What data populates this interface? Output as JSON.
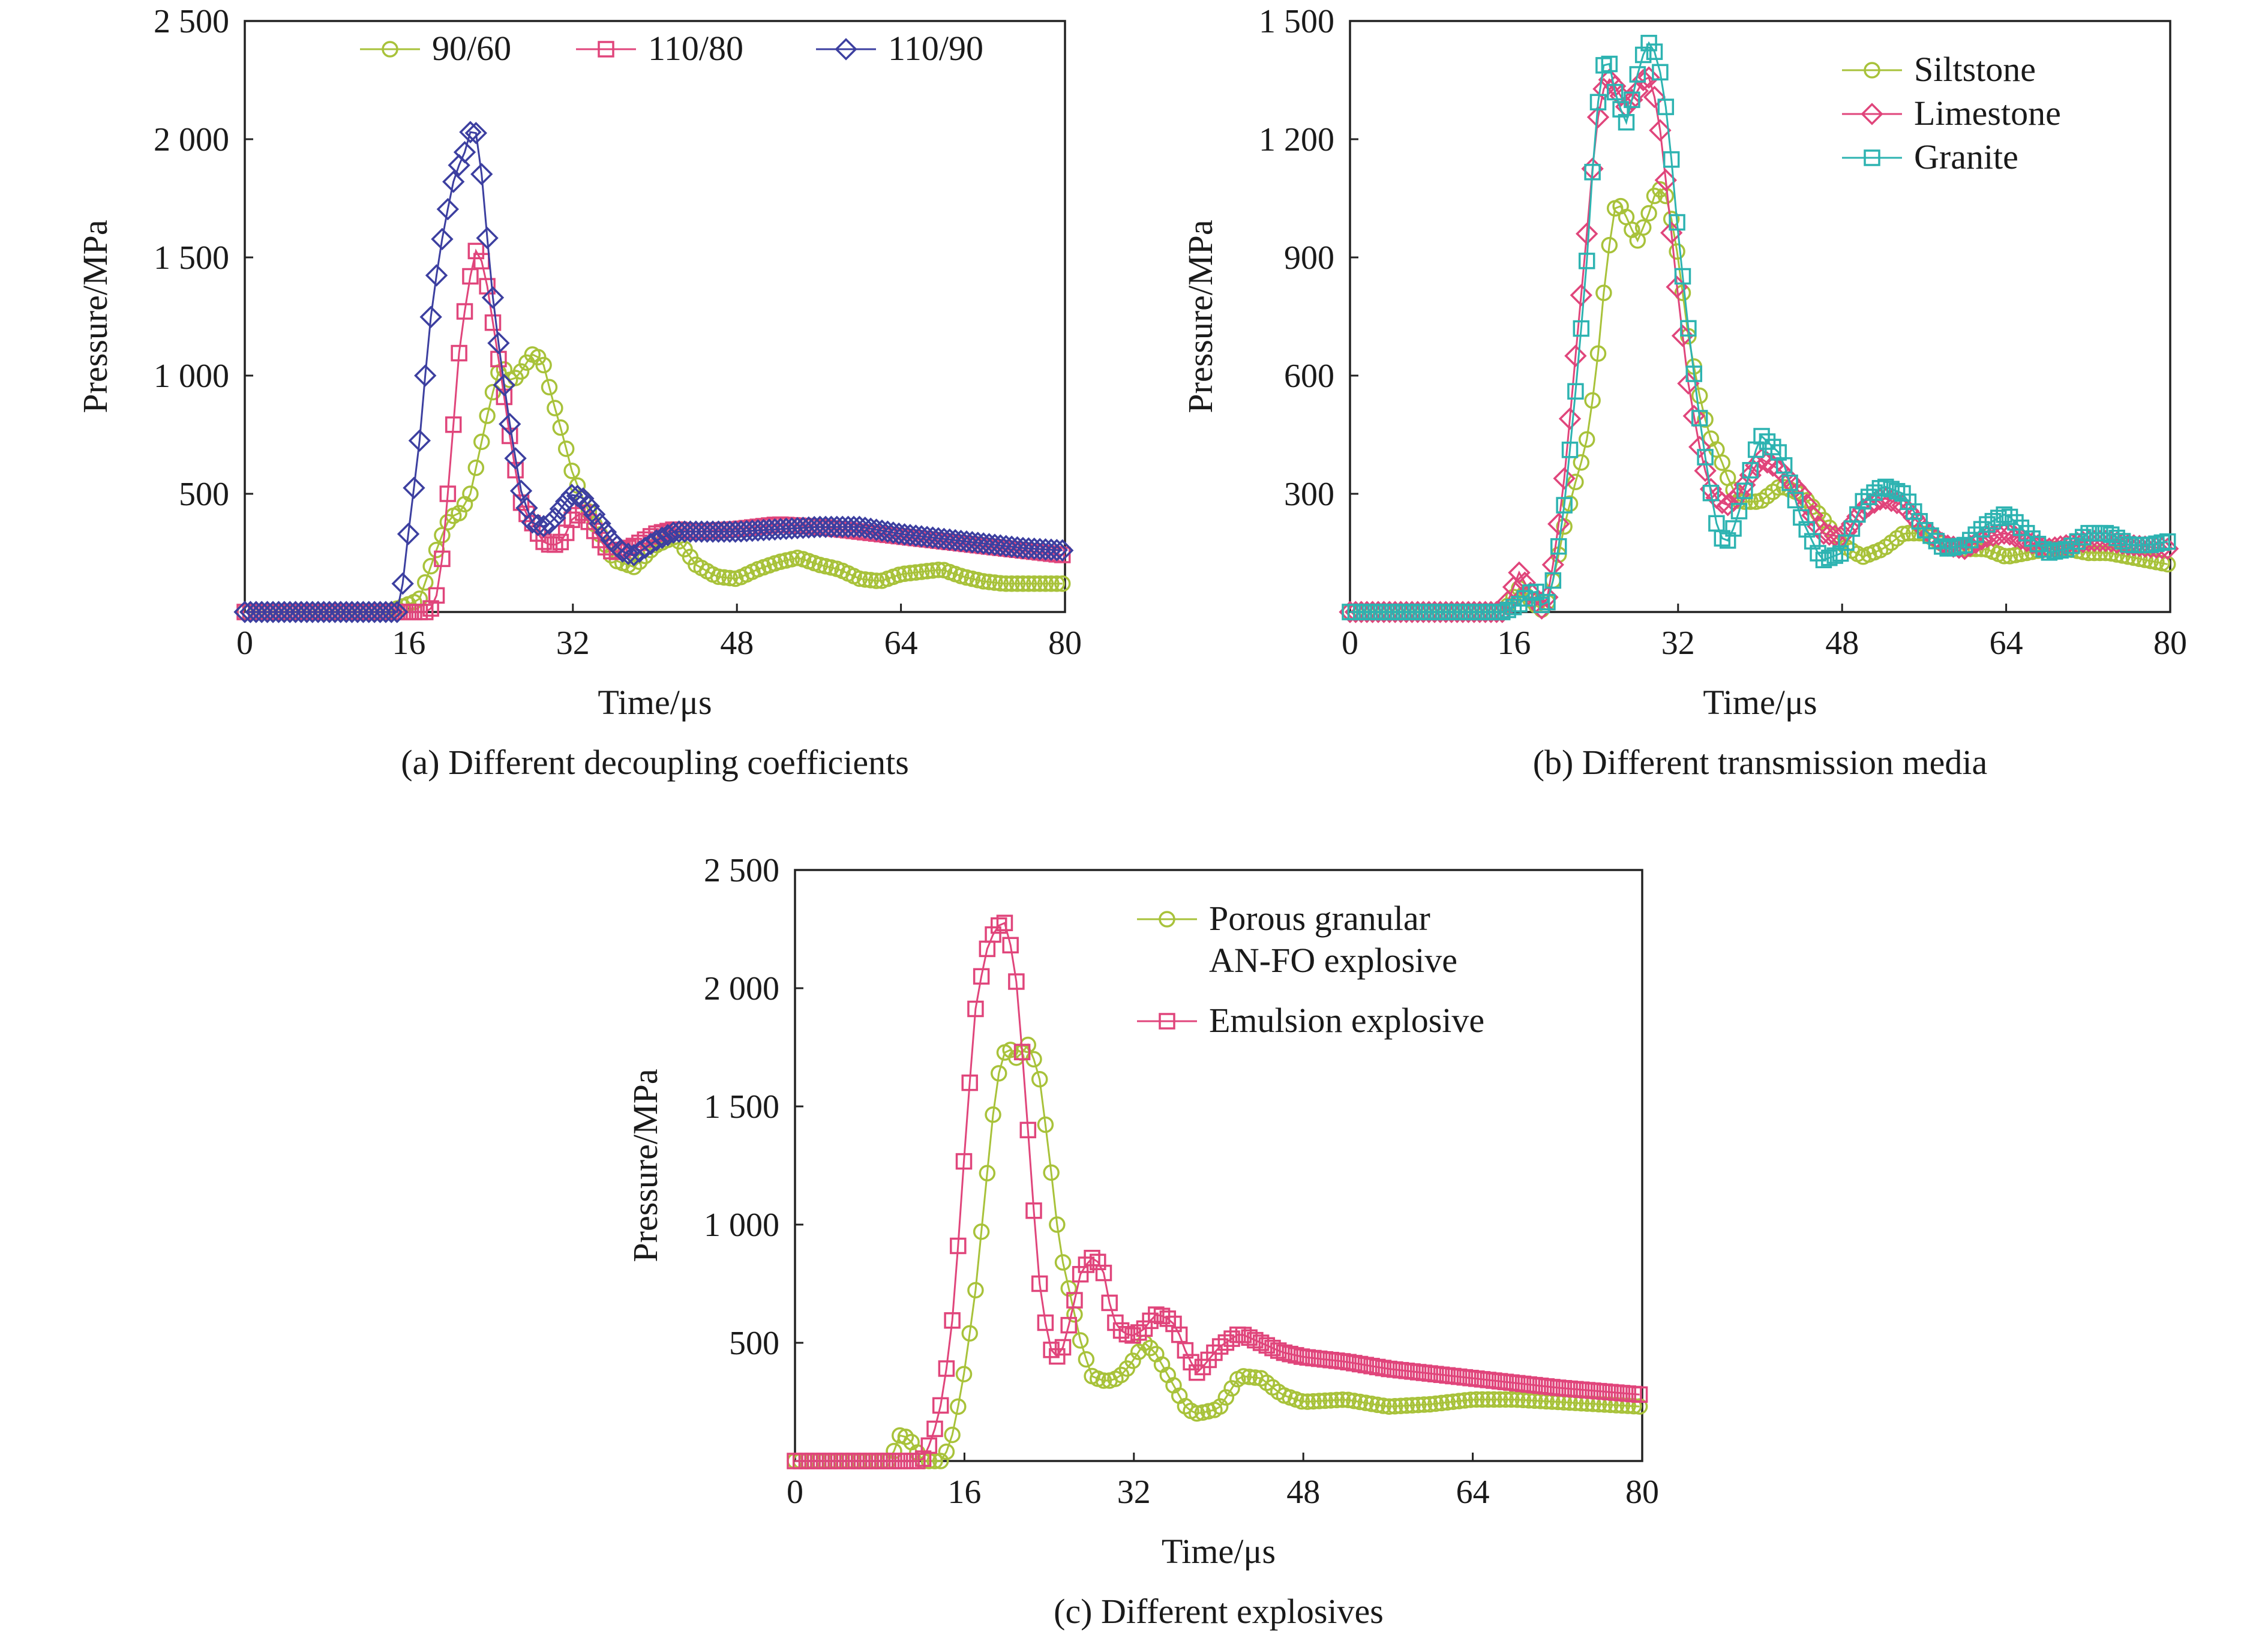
{
  "chart_data": [
    {
      "type": "line",
      "caption": "(a) Different decoupling coefficients",
      "xlabel": "Time/μs",
      "ylabel": "Pressure/MPa",
      "xlim": [
        0,
        80
      ],
      "ylim": [
        0,
        2500
      ],
      "xticks": [
        0,
        16,
        32,
        48,
        64,
        80
      ],
      "xtick_labels": [
        "0",
        "16",
        "32",
        "48",
        "64",
        "80"
      ],
      "yticks": [
        500,
        1000,
        1500,
        2000,
        2500
      ],
      "ytick_labels": [
        "500",
        "1 000",
        "1 500",
        "2 000",
        "2 500"
      ],
      "legend_position": "top",
      "series": [
        {
          "name": "90/60",
          "color": "#a8c23a",
          "marker": "circle",
          "x": [
            0,
            14,
            17,
            19,
            20,
            21,
            22,
            23,
            24,
            25,
            26,
            27,
            28,
            29,
            30,
            31,
            32,
            33,
            34,
            35,
            36,
            38,
            40,
            42,
            44,
            46,
            48,
            50,
            52,
            54,
            56,
            58,
            60,
            62,
            64,
            66,
            68,
            70,
            72,
            74,
            76,
            78,
            80
          ],
          "y": [
            0,
            0,
            50,
            300,
            400,
            420,
            500,
            700,
            900,
            1050,
            970,
            1020,
            1090,
            1070,
            900,
            750,
            580,
            480,
            380,
            300,
            220,
            190,
            280,
            320,
            200,
            150,
            140,
            180,
            210,
            230,
            200,
            180,
            140,
            130,
            160,
            170,
            180,
            150,
            130,
            120,
            120,
            120,
            120
          ]
        },
        {
          "name": "110/80",
          "color": "#e0457b",
          "marker": "square",
          "x": [
            0,
            18,
            19,
            20,
            21,
            22,
            22.5,
            23,
            23.5,
            24,
            25,
            26,
            27,
            28,
            29,
            30,
            31,
            32,
            33,
            34,
            35,
            36,
            38,
            40,
            42,
            44,
            48,
            52,
            56,
            60,
            64,
            68,
            72,
            76,
            80
          ],
          "y": [
            0,
            0,
            100,
            600,
            1150,
            1420,
            1530,
            1500,
            1420,
            1280,
            1000,
            700,
            450,
            380,
            300,
            280,
            300,
            400,
            420,
            350,
            280,
            250,
            280,
            330,
            350,
            340,
            350,
            370,
            360,
            340,
            320,
            300,
            280,
            260,
            240
          ]
        },
        {
          "name": "110/90",
          "color": "#3c3fa0",
          "marker": "diamond",
          "x": [
            0,
            15,
            15.5,
            16,
            17,
            18,
            19,
            20,
            20.5,
            21,
            21.5,
            22,
            22.5,
            23,
            23.5,
            24,
            25,
            26,
            27,
            28,
            29,
            30,
            31,
            32,
            33,
            34,
            35,
            36,
            37,
            38,
            40,
            42,
            44,
            48,
            52,
            56,
            60,
            64,
            68,
            72,
            76,
            80
          ],
          "y": [
            0,
            0,
            150,
            350,
            700,
            1200,
            1520,
            1750,
            1850,
            1900,
            1950,
            2030,
            2040,
            1900,
            1660,
            1400,
            1050,
            750,
            500,
            380,
            360,
            380,
            450,
            500,
            480,
            420,
            350,
            290,
            250,
            240,
            300,
            340,
            340,
            340,
            350,
            360,
            360,
            330,
            310,
            290,
            270,
            260
          ]
        }
      ]
    },
    {
      "type": "line",
      "caption": "(b) Different transmission media",
      "xlabel": "Time/μs",
      "ylabel": "Pressure/MPa",
      "xlim": [
        0,
        80
      ],
      "ylim": [
        0,
        1500
      ],
      "xticks": [
        0,
        16,
        32,
        48,
        64,
        80
      ],
      "xtick_labels": [
        "0",
        "16",
        "32",
        "48",
        "64",
        "80"
      ],
      "yticks": [
        300,
        600,
        900,
        1200,
        1500
      ],
      "ytick_labels": [
        "300",
        "600",
        "900",
        "1 200",
        "1 500"
      ],
      "legend_position": "top-right",
      "series": [
        {
          "name": "Siltstone",
          "color": "#a8c23a",
          "marker": "circle",
          "x": [
            0,
            15,
            16.5,
            18,
            19,
            20,
            21,
            22,
            23,
            24,
            25,
            26,
            27,
            28,
            29,
            30,
            31,
            32,
            33,
            34,
            35,
            36,
            37,
            38,
            40,
            42,
            44,
            46,
            48,
            50,
            52,
            54,
            56,
            58,
            60,
            62,
            64,
            66,
            68,
            70,
            72,
            74,
            76,
            78,
            80
          ],
          "y": [
            0,
            0,
            60,
            20,
            0,
            100,
            230,
            330,
            420,
            600,
            880,
            1050,
            1000,
            940,
            1000,
            1080,
            1050,
            900,
            700,
            560,
            450,
            400,
            330,
            280,
            280,
            320,
            300,
            240,
            170,
            140,
            160,
            200,
            200,
            170,
            160,
            160,
            140,
            150,
            160,
            160,
            150,
            150,
            140,
            130,
            120
          ]
        },
        {
          "name": "Limestone",
          "color": "#e0457b",
          "marker": "diamond",
          "x": [
            0,
            15,
            16.5,
            18,
            19,
            20,
            21,
            22,
            23,
            24,
            25,
            26,
            27,
            28,
            29,
            30,
            31,
            32,
            33,
            34,
            35,
            36,
            37,
            38,
            40,
            42,
            44,
            46,
            48,
            50,
            52,
            54,
            56,
            58,
            60,
            62,
            64,
            66,
            68,
            70,
            72,
            74,
            76,
            78,
            80
          ],
          "y": [
            0,
            0,
            100,
            30,
            0,
            150,
            360,
            650,
            930,
            1230,
            1360,
            1330,
            1280,
            1320,
            1370,
            1280,
            1050,
            800,
            580,
            430,
            320,
            280,
            270,
            300,
            390,
            360,
            300,
            200,
            190,
            260,
            290,
            270,
            210,
            170,
            160,
            190,
            200,
            180,
            160,
            170,
            180,
            180,
            170,
            165,
            160
          ]
        },
        {
          "name": "Granite",
          "color": "#2db3b1",
          "marker": "square",
          "x": [
            0,
            15,
            16.5,
            18,
            19,
            20,
            21,
            22,
            23,
            24,
            25,
            26,
            27,
            28,
            29,
            30,
            31,
            32,
            33,
            34,
            35,
            36,
            37,
            38,
            40,
            42,
            44,
            46,
            48,
            50,
            52,
            54,
            56,
            58,
            60,
            62,
            64,
            66,
            68,
            70,
            72,
            74,
            76,
            78,
            80
          ],
          "y": [
            0,
            0,
            20,
            60,
            0,
            100,
            290,
            560,
            850,
            1260,
            1430,
            1300,
            1240,
            1360,
            1450,
            1410,
            1250,
            960,
            720,
            510,
            330,
            190,
            180,
            260,
            450,
            400,
            240,
            130,
            150,
            280,
            320,
            300,
            210,
            160,
            170,
            220,
            250,
            200,
            150,
            160,
            200,
            200,
            170,
            170,
            180
          ]
        }
      ]
    },
    {
      "type": "line",
      "caption": "(c) Different explosives",
      "xlabel": "Time/μs",
      "ylabel": "Pressure/MPa",
      "xlim": [
        0,
        80
      ],
      "ylim": [
        0,
        2500
      ],
      "xticks": [
        0,
        16,
        32,
        48,
        64,
        80
      ],
      "xtick_labels": [
        "0",
        "16",
        "32",
        "48",
        "64",
        "80"
      ],
      "yticks": [
        500,
        1000,
        1500,
        2000,
        2500
      ],
      "ytick_labels": [
        "500",
        "1 000",
        "1 500",
        "2 000",
        "2 500"
      ],
      "legend_position": "top-right",
      "series": [
        {
          "name": "Porous granular AN-FO explosive",
          "name_lines": [
            "Porous granular",
            "AN-FO explosive"
          ],
          "color": "#a8c23a",
          "marker": "circle",
          "x": [
            0,
            9,
            9.5,
            10,
            11,
            12,
            13,
            14,
            15,
            16,
            17,
            18,
            19,
            20,
            21,
            22,
            23,
            24,
            25,
            26,
            27,
            28,
            29,
            30,
            31,
            32,
            33,
            34,
            35,
            36,
            37,
            38,
            40,
            42,
            44,
            46,
            48,
            52,
            56,
            60,
            64,
            68,
            72,
            76,
            80
          ],
          "y": [
            0,
            0,
            60,
            120,
            80,
            0,
            0,
            0,
            130,
            380,
            700,
            1150,
            1600,
            1760,
            1700,
            1760,
            1650,
            1300,
            900,
            700,
            500,
            360,
            340,
            340,
            370,
            430,
            500,
            460,
            380,
            300,
            220,
            200,
            220,
            360,
            350,
            280,
            250,
            260,
            230,
            240,
            260,
            260,
            250,
            240,
            230
          ]
        },
        {
          "name": "Emulsion explosive",
          "name_lines": [
            "Emulsion explosive"
          ],
          "color": "#e0457b",
          "marker": "square",
          "x": [
            0,
            12,
            13,
            14,
            15,
            16,
            17,
            18,
            19,
            20,
            21,
            22,
            23,
            24,
            25,
            26,
            27,
            28,
            29,
            30,
            31,
            32,
            33,
            34,
            35,
            36,
            37,
            38,
            40,
            42,
            44,
            46,
            48,
            52,
            56,
            60,
            64,
            68,
            72,
            76,
            80
          ],
          "y": [
            0,
            0,
            100,
            280,
            650,
            1300,
            1900,
            2150,
            2260,
            2280,
            2000,
            1400,
            780,
            480,
            430,
            600,
            800,
            860,
            830,
            600,
            540,
            530,
            560,
            620,
            610,
            570,
            450,
            370,
            480,
            540,
            500,
            460,
            440,
            420,
            390,
            370,
            350,
            330,
            310,
            295,
            280
          ]
        }
      ]
    }
  ]
}
